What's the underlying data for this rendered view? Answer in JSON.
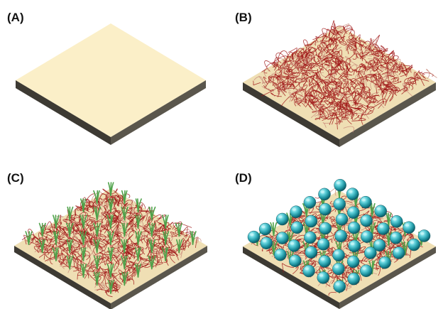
{
  "figure": {
    "panels": [
      {
        "label": "(A)",
        "stage": "bare-substrate"
      },
      {
        "label": "(B)",
        "stage": "fiber-mesh"
      },
      {
        "label": "(C)",
        "stage": "fiber-mesh-with-sprouts"
      },
      {
        "label": "(D)",
        "stage": "fiber-mesh-with-sprouts-and-spheres"
      }
    ],
    "colors": {
      "substrate_top": "#fbefc8",
      "substrate_side_dark": "#3d3a33",
      "substrate_side_light": "#5a564c",
      "fiber": "#a01818",
      "sprout": "#4fa24a",
      "sphere": "#2fb8c4",
      "sphere_highlight": "#bff4f7"
    }
  }
}
